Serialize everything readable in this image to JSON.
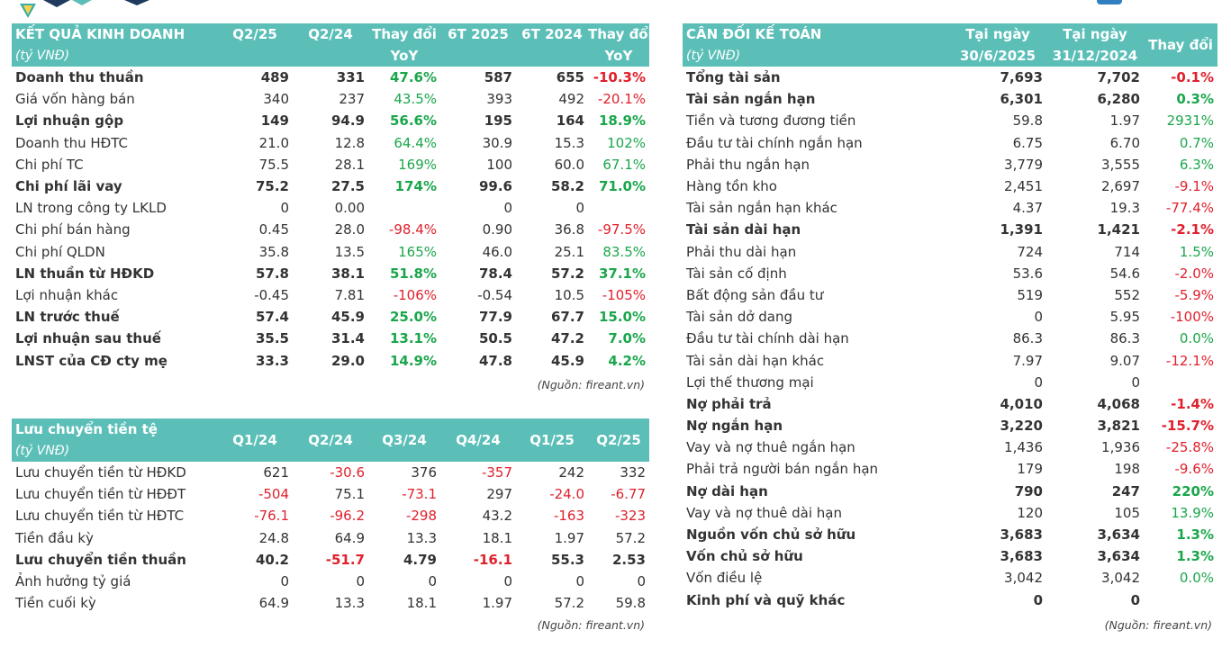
{
  "colors": {
    "header_bg": "#5bbfb8",
    "positive": "#1aa64b",
    "negative": "#e0202c"
  },
  "income": {
    "title": "KẾT QUẢ KINH DOANH",
    "unit": "(tỷ VNĐ)",
    "columns": [
      "Q2/25",
      "Q2/24",
      "Thay đổi",
      "6T 2025",
      "6T 2024",
      "Thay đổi"
    ],
    "columns_sub": [
      "",
      "",
      "YoY",
      "",
      "",
      "YoY"
    ],
    "rows": [
      {
        "label": "Doanh thu thuần",
        "bold": true,
        "values": [
          "489",
          "331",
          "47.6%",
          "587",
          "655",
          "-10.3%"
        ]
      },
      {
        "label": "Giá vốn hàng bán",
        "bold": false,
        "values": [
          "340",
          "237",
          "43.5%",
          "393",
          "492",
          "-20.1%"
        ]
      },
      {
        "label": "Lợi nhuận gộp",
        "bold": true,
        "values": [
          "149",
          "94.9",
          "56.6%",
          "195",
          "164",
          "18.9%"
        ]
      },
      {
        "label": "Doanh thu HĐTC",
        "bold": false,
        "values": [
          "21.0",
          "12.8",
          "64.4%",
          "30.9",
          "15.3",
          "102%"
        ]
      },
      {
        "label": "Chi phí TC",
        "bold": false,
        "values": [
          "75.5",
          "28.1",
          "169%",
          "100",
          "60.0",
          "67.1%"
        ]
      },
      {
        "label": "Chi phí lãi vay",
        "bold": true,
        "values": [
          "75.2",
          "27.5",
          "174%",
          "99.6",
          "58.2",
          "71.0%"
        ]
      },
      {
        "label": "LN trong công ty LKLD",
        "bold": false,
        "values": [
          "0",
          "0.00",
          "",
          "0",
          "0",
          ""
        ]
      },
      {
        "label": "Chi phí bán hàng",
        "bold": false,
        "values": [
          "0.45",
          "28.0",
          "-98.4%",
          "0.90",
          "36.8",
          "-97.5%"
        ]
      },
      {
        "label": "Chi phí QLDN",
        "bold": false,
        "values": [
          "35.8",
          "13.5",
          "165%",
          "46.0",
          "25.1",
          "83.5%"
        ]
      },
      {
        "label": "LN thuần từ HĐKD",
        "bold": true,
        "values": [
          "57.8",
          "38.1",
          "51.8%",
          "78.4",
          "57.2",
          "37.1%"
        ]
      },
      {
        "label": "Lợi nhuận khác",
        "bold": false,
        "values": [
          "-0.45",
          "7.81",
          "-106%",
          "-0.54",
          "10.5",
          "-105%"
        ]
      },
      {
        "label": "LN trước thuế",
        "bold": true,
        "values": [
          "57.4",
          "45.9",
          "25.0%",
          "77.9",
          "67.7",
          "15.0%"
        ]
      },
      {
        "label": "Lợi nhuận sau thuế",
        "bold": true,
        "values": [
          "35.5",
          "31.4",
          "13.1%",
          "50.5",
          "47.2",
          "7.0%"
        ]
      },
      {
        "label": "LNST của CĐ cty mẹ",
        "bold": true,
        "values": [
          "33.3",
          "29.0",
          "14.9%",
          "47.8",
          "45.9",
          "4.2%"
        ]
      }
    ],
    "source": "(Nguồn: fireant.vn)"
  },
  "cashflow": {
    "title": "Lưu chuyển tiền tệ",
    "unit": "(tỷ VNĐ)",
    "columns": [
      "Q1/24",
      "Q2/24",
      "Q3/24",
      "Q4/24",
      "Q1/25",
      "Q2/25"
    ],
    "rows": [
      {
        "label": "Lưu chuyển tiền từ HĐKD",
        "bold": false,
        "values": [
          "621",
          "-30.6",
          "376",
          "-357",
          "242",
          "332"
        ]
      },
      {
        "label": "Lưu chuyển tiền từ HĐĐT",
        "bold": false,
        "values": [
          "-504",
          "75.1",
          "-73.1",
          "297",
          "-24.0",
          "-6.77"
        ]
      },
      {
        "label": "Lưu chuyển tiền từ HĐTC",
        "bold": false,
        "values": [
          "-76.1",
          "-96.2",
          "-298",
          "43.2",
          "-163",
          "-323"
        ]
      },
      {
        "label": "Tiền đầu kỳ",
        "bold": false,
        "values": [
          "24.8",
          "64.9",
          "13.3",
          "18.1",
          "1.97",
          "57.2"
        ]
      },
      {
        "label": "Lưu chuyển tiền thuần",
        "bold": true,
        "values": [
          "40.2",
          "-51.7",
          "4.79",
          "-16.1",
          "55.3",
          "2.53"
        ]
      },
      {
        "label": "Ảnh hưởng tỷ giá",
        "bold": false,
        "values": [
          "0",
          "0",
          "0",
          "0",
          "0",
          "0"
        ]
      },
      {
        "label": "Tiền cuối kỳ",
        "bold": false,
        "values": [
          "64.9",
          "13.3",
          "18.1",
          "1.97",
          "57.2",
          "59.8"
        ]
      }
    ],
    "source": "(Nguồn: fireant.vn)"
  },
  "balance": {
    "title": "CÂN ĐỐI KẾ TOÁN",
    "unit": "(tỷ VNĐ)",
    "columns": [
      "Tại ngày",
      "Tại ngày",
      "Thay đổi"
    ],
    "columns_sub": [
      "30/6/2025",
      "31/12/2024",
      ""
    ],
    "rows": [
      {
        "label": "Tổng tài sản",
        "bold": true,
        "values": [
          "7,693",
          "7,702",
          "-0.1%"
        ]
      },
      {
        "label": "Tài sản ngắn hạn",
        "bold": true,
        "values": [
          "6,301",
          "6,280",
          "0.3%"
        ]
      },
      {
        "label": "Tiền và tương đương tiền",
        "bold": false,
        "values": [
          "59.8",
          "1.97",
          "2931%"
        ]
      },
      {
        "label": "Đầu tư tài chính ngắn hạn",
        "bold": false,
        "values": [
          "6.75",
          "6.70",
          "0.7%"
        ]
      },
      {
        "label": "Phải thu ngắn hạn",
        "bold": false,
        "values": [
          "3,779",
          "3,555",
          "6.3%"
        ]
      },
      {
        "label": "Hàng tồn kho",
        "bold": false,
        "values": [
          "2,451",
          "2,697",
          "-9.1%"
        ]
      },
      {
        "label": "Tài sản ngắn hạn khác",
        "bold": false,
        "values": [
          "4.37",
          "19.3",
          "-77.4%"
        ]
      },
      {
        "label": "Tài sản dài hạn",
        "bold": true,
        "values": [
          "1,391",
          "1,421",
          "-2.1%"
        ]
      },
      {
        "label": "Phải thu dài hạn",
        "bold": false,
        "values": [
          "724",
          "714",
          "1.5%"
        ]
      },
      {
        "label": "Tài sản cố định",
        "bold": false,
        "values": [
          "53.6",
          "54.6",
          "-2.0%"
        ]
      },
      {
        "label": "Bất động sản đầu tư",
        "bold": false,
        "values": [
          "519",
          "552",
          "-5.9%"
        ]
      },
      {
        "label": "Tài sản dở dang",
        "bold": false,
        "values": [
          "0",
          "5.95",
          "-100%"
        ]
      },
      {
        "label": "Đầu tư tài chính dài hạn",
        "bold": false,
        "values": [
          "86.3",
          "86.3",
          "0.0%"
        ]
      },
      {
        "label": "Tài sản dài hạn khác",
        "bold": false,
        "values": [
          "7.97",
          "9.07",
          "-12.1%"
        ]
      },
      {
        "label": "Lợi thế thương mại",
        "bold": false,
        "values": [
          "0",
          "0",
          ""
        ]
      },
      {
        "label": "Nợ phải trả",
        "bold": true,
        "values": [
          "4,010",
          "4,068",
          "-1.4%"
        ]
      },
      {
        "label": "Nợ ngắn hạn",
        "bold": true,
        "values": [
          "3,220",
          "3,821",
          "-15.7%"
        ]
      },
      {
        "label": "Vay và nợ thuê ngắn hạn",
        "bold": false,
        "values": [
          "1,436",
          "1,936",
          "-25.8%"
        ]
      },
      {
        "label": "Phải trả người bán ngắn hạn",
        "bold": false,
        "values": [
          "179",
          "198",
          "-9.6%"
        ]
      },
      {
        "label": "Nợ dài hạn",
        "bold": true,
        "values": [
          "790",
          "247",
          "220%"
        ]
      },
      {
        "label": "Vay và nợ thuê dài hạn",
        "bold": false,
        "values": [
          "120",
          "105",
          "13.9%"
        ]
      },
      {
        "label": "Nguồn vốn chủ sở hữu",
        "bold": true,
        "values": [
          "3,683",
          "3,634",
          "1.3%"
        ]
      },
      {
        "label": "Vốn chủ sở hữu",
        "bold": true,
        "values": [
          "3,683",
          "3,634",
          "1.3%"
        ]
      },
      {
        "label": "Vốn điều lệ",
        "bold": false,
        "values": [
          "3,042",
          "3,042",
          "0.0%"
        ]
      },
      {
        "label": "Kinh phí và quỹ khác",
        "bold": true,
        "values": [
          "0",
          "0",
          ""
        ]
      }
    ],
    "source": "(Nguồn: fireant.vn)"
  }
}
